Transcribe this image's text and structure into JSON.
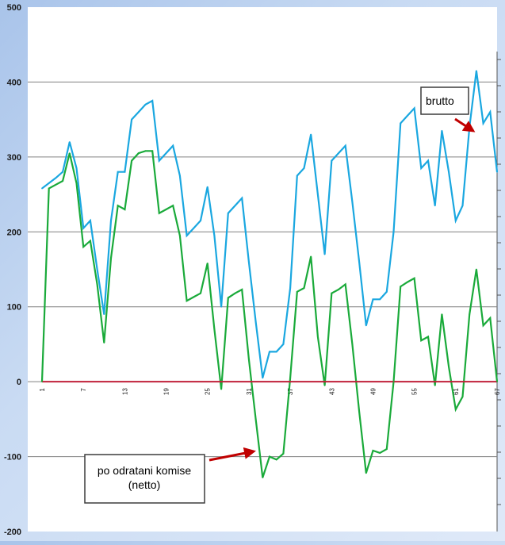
{
  "chart_data": {
    "type": "line",
    "title": "",
    "xlabel": "",
    "ylabel": "",
    "ylim": [
      -200,
      500
    ],
    "yticks": [
      -200,
      -100,
      0,
      100,
      200,
      300,
      400,
      500
    ],
    "xlim": [
      1,
      67
    ],
    "xticks": [
      1,
      7,
      13,
      19,
      25,
      31,
      37,
      43,
      49,
      55,
      61,
      67
    ],
    "grid": true,
    "series": [
      {
        "name": "brutto",
        "color": "#1aa7e0",
        "x": [
          1,
          2,
          3,
          4,
          5,
          6,
          7,
          8,
          9,
          10,
          11,
          12,
          13,
          14,
          15,
          16,
          17,
          18,
          19,
          20,
          21,
          22,
          23,
          24,
          25,
          26,
          27,
          28,
          29,
          30,
          31,
          32,
          33,
          34,
          35,
          36,
          37,
          38,
          39,
          40,
          41,
          42,
          43,
          44,
          45,
          46,
          47,
          48,
          49,
          50,
          51,
          52,
          53,
          54,
          55,
          56,
          57,
          58,
          59,
          60,
          61,
          62,
          63,
          64,
          65,
          66,
          67
        ],
        "values": [
          258,
          265,
          272,
          280,
          320,
          285,
          205,
          215,
          150,
          90,
          215,
          280,
          280,
          350,
          360,
          370,
          375,
          295,
          305,
          315,
          275,
          195,
          205,
          215,
          260,
          195,
          100,
          225,
          235,
          245,
          160,
          80,
          5,
          40,
          40,
          50,
          125,
          275,
          285,
          330,
          250,
          170,
          295,
          305,
          315,
          240,
          160,
          75,
          110,
          110,
          120,
          200,
          345,
          355,
          365,
          285,
          295,
          235,
          335,
          280,
          215,
          235,
          340,
          415,
          345,
          360,
          280
        ]
      },
      {
        "name": "po odratani komise (netto)",
        "color": "#1aaa3a",
        "x": [
          1,
          2,
          3,
          4,
          5,
          6,
          7,
          8,
          9,
          10,
          11,
          12,
          13,
          14,
          15,
          16,
          17,
          18,
          19,
          20,
          21,
          22,
          23,
          24,
          25,
          26,
          27,
          28,
          29,
          30,
          31,
          32,
          33,
          34,
          35,
          36,
          37,
          38,
          39,
          40,
          41,
          42,
          43,
          44,
          45,
          46,
          47,
          48,
          49,
          50,
          51,
          52,
          53,
          54,
          55,
          56,
          57,
          58,
          59,
          60,
          61,
          62,
          63,
          64,
          65,
          66,
          67
        ],
        "values": [
          0,
          258,
          263,
          268,
          305,
          265,
          180,
          188,
          130,
          52,
          165,
          235,
          230,
          295,
          305,
          308,
          308,
          225,
          230,
          235,
          195,
          108,
          113,
          118,
          158,
          70,
          -10,
          112,
          118,
          123,
          30,
          -50,
          -128,
          -100,
          -104,
          -96,
          5,
          120,
          125,
          167,
          60,
          -5,
          118,
          123,
          130,
          50,
          -40,
          -122,
          -92,
          -95,
          -90,
          0,
          127,
          133,
          138,
          55,
          60,
          -5,
          90,
          20,
          -37,
          -20,
          90,
          150,
          75,
          85,
          0
        ]
      },
      {
        "name": "",
        "color": "#c0203a",
        "x": [
          1,
          67
        ],
        "values": [
          0,
          0
        ]
      }
    ],
    "annotations": [
      {
        "text": "brutto",
        "target_x": 64,
        "target_y": 330
      },
      {
        "text": "po odratani komise\n(netto)",
        "target_x": 32,
        "target_y": -95
      }
    ]
  }
}
